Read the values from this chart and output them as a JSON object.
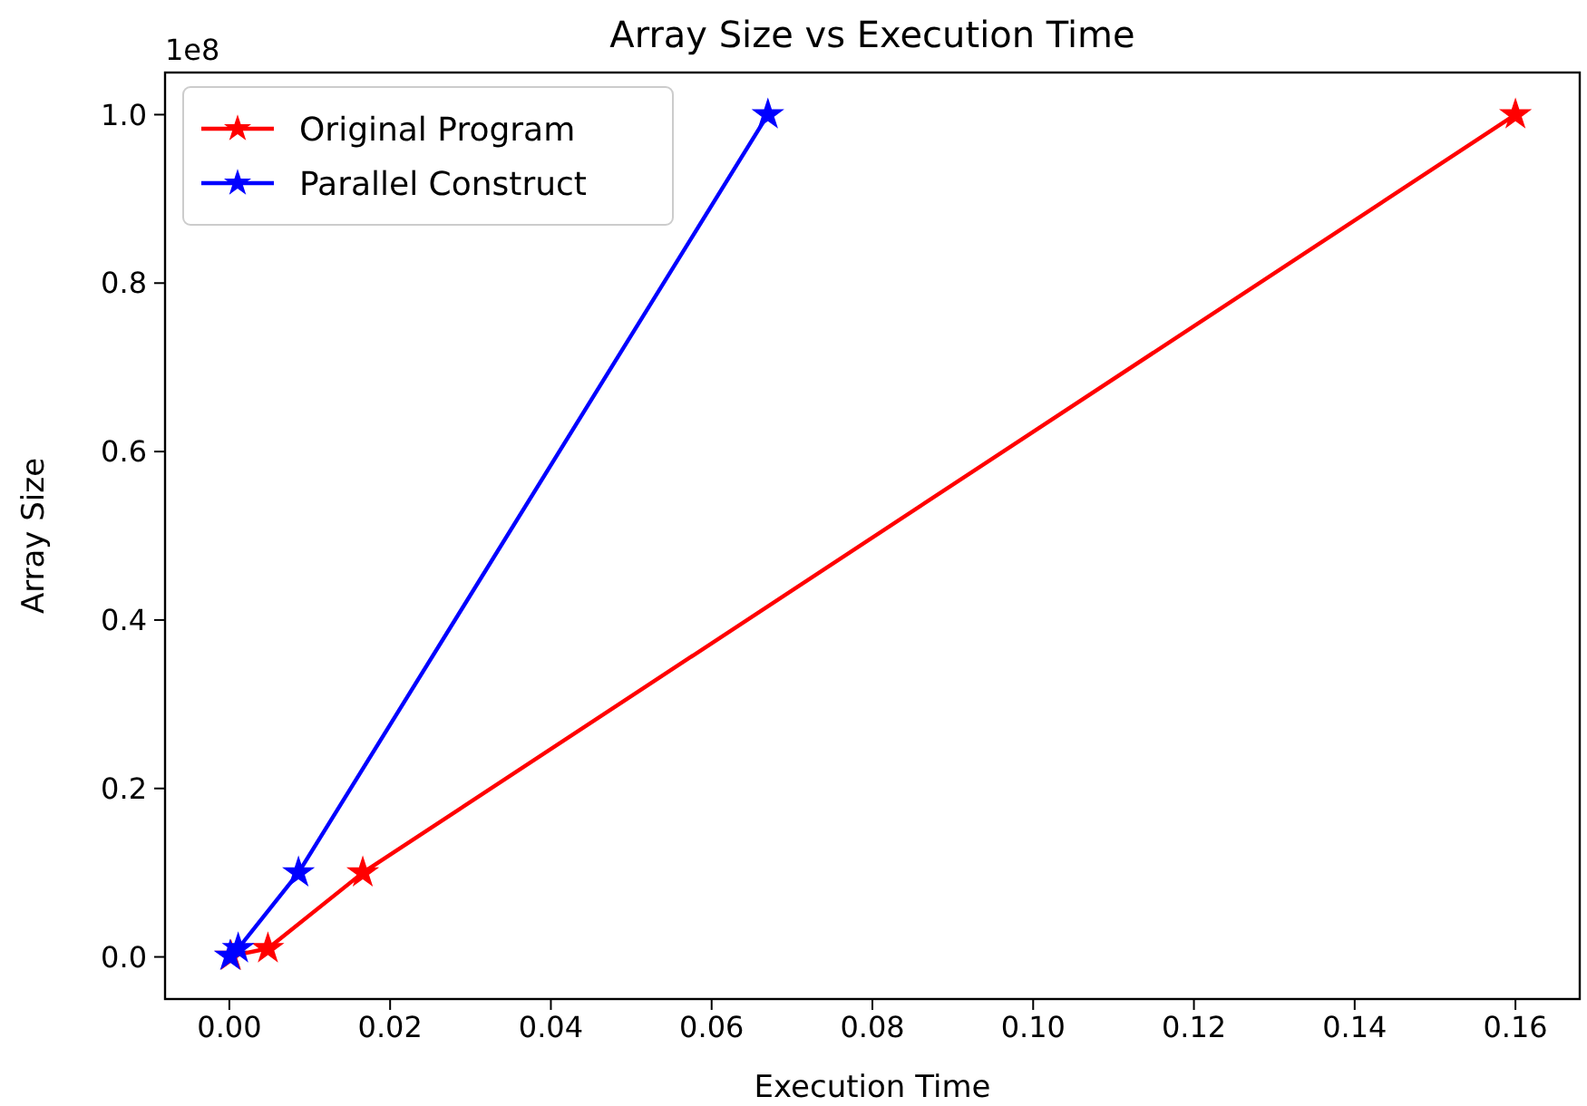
{
  "chart_data": {
    "type": "line",
    "title": "Array Size vs Execution Time",
    "xlabel": "Execution Time",
    "ylabel": "Array Size",
    "annotations": [
      "1e8"
    ],
    "series": [
      {
        "name": "Original Program",
        "color": "#ff0000",
        "x": [
          0.0002,
          0.0048,
          0.0166,
          0.16
        ],
        "values": [
          0.001,
          0.01,
          0.1,
          1.0
        ]
      },
      {
        "name": "Parallel Construct",
        "color": "#0000ff",
        "x": [
          0.0001,
          0.0011,
          0.0086,
          0.067
        ],
        "values": [
          0.001,
          0.01,
          0.1,
          1.0
        ]
      }
    ],
    "xlim": [
      -0.008,
      0.168
    ],
    "xticks": [
      {
        "value": 0,
        "label": "0.00"
      },
      {
        "value": 0.02,
        "label": "0.02"
      },
      {
        "value": 0.04,
        "label": "0.04"
      },
      {
        "value": 0.06,
        "label": "0.06"
      },
      {
        "value": 0.08,
        "label": "0.08"
      },
      {
        "value": 0.1,
        "label": "0.10"
      },
      {
        "value": 0.12,
        "label": "0.12"
      },
      {
        "value": 0.14,
        "label": "0.14"
      },
      {
        "value": 0.16,
        "label": "0.16"
      }
    ],
    "ylim": [
      -0.05,
      1.05
    ],
    "yticks": [
      {
        "value": 0,
        "label": "0.0"
      },
      {
        "value": 0.2,
        "label": "0.2"
      },
      {
        "value": 0.4,
        "label": "0.4"
      },
      {
        "value": 0.6,
        "label": "0.6"
      },
      {
        "value": 0.8,
        "label": "0.8"
      },
      {
        "value": 1.0,
        "label": "1.0"
      }
    ],
    "grid": false,
    "legend": "top left",
    "marker": "star",
    "line_style": "solid"
  }
}
